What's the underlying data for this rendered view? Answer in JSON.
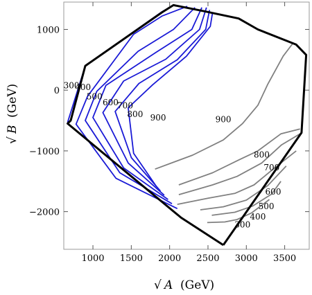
{
  "chart_data": {
    "type": "contour",
    "xlabel": "(GeV)",
    "ylabel": "(GeV)",
    "xlabel_symbol": "√A",
    "ylabel_symbol": "√B",
    "xlim": [
      620,
      3820
    ],
    "ylim": [
      -2620,
      1450
    ],
    "xticks": [
      1000,
      1500,
      2000,
      2500,
      3000,
      3500
    ],
    "xtick_labels": [
      "1000",
      "1500",
      "2000",
      "2500",
      "3000",
      "3500"
    ],
    "yticks": [
      1000,
      0,
      -1000,
      -2000
    ],
    "ytick_labels": [
      "1000",
      "0",
      "−1000",
      "−2000"
    ],
    "boundary": [
      [
        2700,
        -2550
      ],
      [
        2150,
        -2100
      ],
      [
        670,
        -550
      ],
      [
        710,
        -500
      ],
      [
        900,
        400
      ],
      [
        1900,
        1280
      ],
      [
        2050,
        1400
      ],
      [
        2450,
        1300
      ],
      [
        2900,
        1180
      ],
      [
        3150,
        1000
      ],
      [
        3650,
        750
      ],
      [
        3780,
        580
      ],
      [
        3720,
        -700
      ],
      [
        2700,
        -2550
      ]
    ],
    "levels_left": [
      {
        "label": "300",
        "points": [
          [
            670,
            -530
          ],
          [
            900,
            400
          ],
          [
            1900,
            1290
          ],
          [
            2050,
            1400
          ]
        ]
      },
      {
        "label": "400",
        "points": [
          [
            2100,
            -1950
          ],
          [
            1300,
            -1450
          ],
          [
            780,
            -560
          ],
          [
            930,
            -100
          ],
          [
            1530,
            920
          ],
          [
            1900,
            1220
          ],
          [
            2230,
            1380
          ]
        ]
      },
      {
        "label": "500",
        "points": [
          [
            2030,
            -1870
          ],
          [
            1350,
            -1360
          ],
          [
            900,
            -500
          ],
          [
            1050,
            -20
          ],
          [
            1590,
            640
          ],
          [
            2050,
            1000
          ],
          [
            2330,
            1360
          ]
        ]
      },
      {
        "label": "600",
        "points": [
          [
            1980,
            -1800
          ],
          [
            1400,
            -1280
          ],
          [
            1000,
            -450
          ],
          [
            1170,
            80
          ],
          [
            1820,
            620
          ],
          [
            2290,
            1000
          ],
          [
            2420,
            1360
          ]
        ]
      },
      {
        "label": "700",
        "points": [
          [
            1930,
            -1730
          ],
          [
            1460,
            -1200
          ],
          [
            1130,
            -370
          ],
          [
            1400,
            150
          ],
          [
            1950,
            510
          ],
          [
            2390,
            1000
          ],
          [
            2480,
            1360
          ]
        ]
      },
      {
        "label": "800",
        "points": [
          [
            1880,
            -1660
          ],
          [
            1500,
            -1110
          ],
          [
            1290,
            -350
          ],
          [
            1600,
            110
          ],
          [
            2100,
            500
          ],
          [
            2470,
            1000
          ],
          [
            2520,
            1320
          ]
        ]
      },
      {
        "label": "900",
        "points": [
          [
            1830,
            -1590
          ],
          [
            1530,
            -1040
          ],
          [
            1460,
            -290
          ],
          [
            1780,
            90
          ],
          [
            2220,
            560
          ],
          [
            2530,
            1050
          ],
          [
            2560,
            1280
          ]
        ]
      }
    ],
    "levels_right": [
      {
        "label": "900",
        "points": [
          [
            1810,
            -1300
          ],
          [
            2300,
            -1070
          ],
          [
            2700,
            -820
          ],
          [
            2950,
            -550
          ],
          [
            3150,
            -250
          ],
          [
            3280,
            100
          ],
          [
            3480,
            560
          ],
          [
            3600,
            760
          ]
        ]
      },
      {
        "label": "800",
        "points": [
          [
            2120,
            -1560
          ],
          [
            2560,
            -1360
          ],
          [
            2900,
            -1150
          ],
          [
            3150,
            -1000
          ],
          [
            3450,
            -720
          ],
          [
            3700,
            -640
          ]
        ]
      },
      {
        "label": "700",
        "points": [
          [
            2120,
            -1720
          ],
          [
            2560,
            -1560
          ],
          [
            2880,
            -1420
          ],
          [
            3200,
            -1200
          ],
          [
            3460,
            -900
          ],
          [
            3700,
            -720
          ]
        ]
      },
      {
        "label": "600",
        "points": [
          [
            2100,
            -1880
          ],
          [
            2500,
            -1780
          ],
          [
            2850,
            -1700
          ],
          [
            3100,
            -1560
          ],
          [
            3350,
            -1300
          ],
          [
            3650,
            -1000
          ]
        ]
      },
      {
        "label": "500",
        "points": [
          [
            2400,
            -1970
          ],
          [
            2700,
            -1920
          ],
          [
            3000,
            -1810
          ],
          [
            3280,
            -1570
          ],
          [
            3520,
            -1250
          ]
        ]
      },
      {
        "label": "400",
        "points": [
          [
            2550,
            -2060
          ],
          [
            2850,
            -2010
          ],
          [
            3080,
            -1910
          ],
          [
            3330,
            -1710
          ],
          [
            3450,
            -1500
          ]
        ]
      },
      {
        "label": "300",
        "points": [
          [
            2490,
            -2180
          ],
          [
            2720,
            -2170
          ],
          [
            2880,
            -2130
          ],
          [
            3070,
            -2020
          ],
          [
            3300,
            -1800
          ]
        ]
      }
    ],
    "label_positions_left": [
      [
        720,
        30
      ],
      [
        870,
        0
      ],
      [
        1020,
        -150
      ],
      [
        1230,
        -250
      ],
      [
        1420,
        -300
      ],
      [
        1550,
        -440
      ],
      [
        1850,
        -500
      ]
    ],
    "label_positions_right": [
      [
        2700,
        -530
      ],
      [
        3200,
        -1110
      ],
      [
        3330,
        -1320
      ],
      [
        3350,
        -1720
      ],
      [
        3260,
        -1960
      ],
      [
        3150,
        -2130
      ],
      [
        2950,
        -2260
      ]
    ],
    "colors": {
      "boundary": "#000000",
      "left_contours": "#1a1ad6",
      "right_contours": "#808080",
      "frame": "#9a9a9a"
    },
    "grid": false,
    "legend": "none"
  }
}
